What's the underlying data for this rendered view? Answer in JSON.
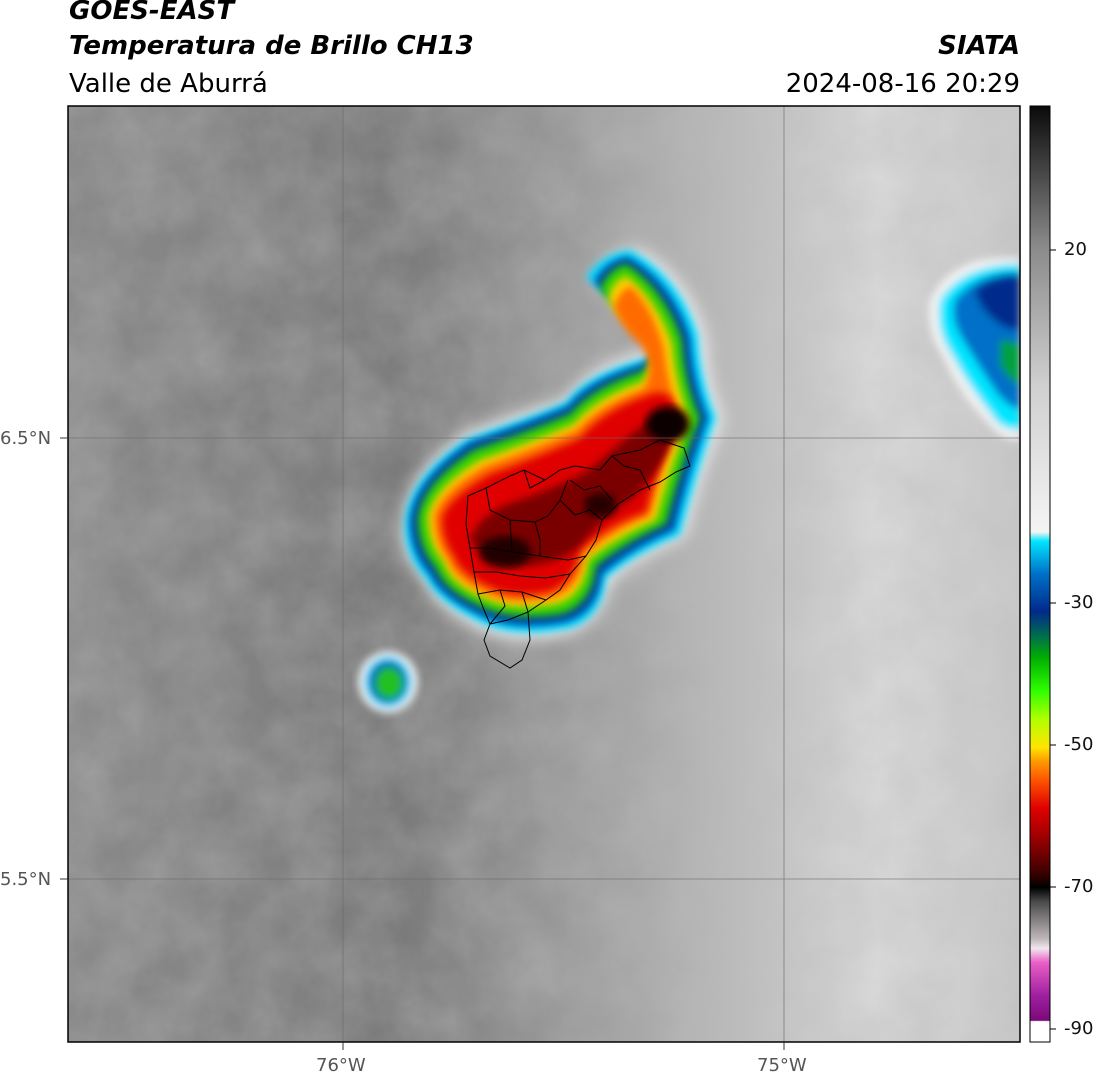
{
  "header": {
    "satellite": "GOES-EAST",
    "product": "Temperatura de Brillo CH13",
    "region": "Valle de Aburrá",
    "agency": "SIATA",
    "datetime": "2024-08-16 20:29"
  },
  "map": {
    "lat_labels": [
      "6.5°N",
      "5.5°N"
    ],
    "lon_labels": [
      "76°W",
      "75°W"
    ],
    "features": [
      "cloud-top-temperature-field",
      "convective-cell",
      "valle-de-aburra-municipal-boundaries"
    ]
  },
  "colorbar": {
    "tick_labels": [
      "20",
      "-30",
      "-50",
      "-70",
      "-90"
    ],
    "colors": {
      "warm_gray": "#2a2a2a",
      "cyan": "#00e5ff",
      "navy": "#002a8c",
      "green": "#00c400",
      "yellow": "#ffe600",
      "orange": "#ff7a00",
      "red": "#e00000",
      "dark_red": "#3a0000",
      "pink": "#ea5fc7",
      "purple": "#8a0e8a"
    }
  }
}
